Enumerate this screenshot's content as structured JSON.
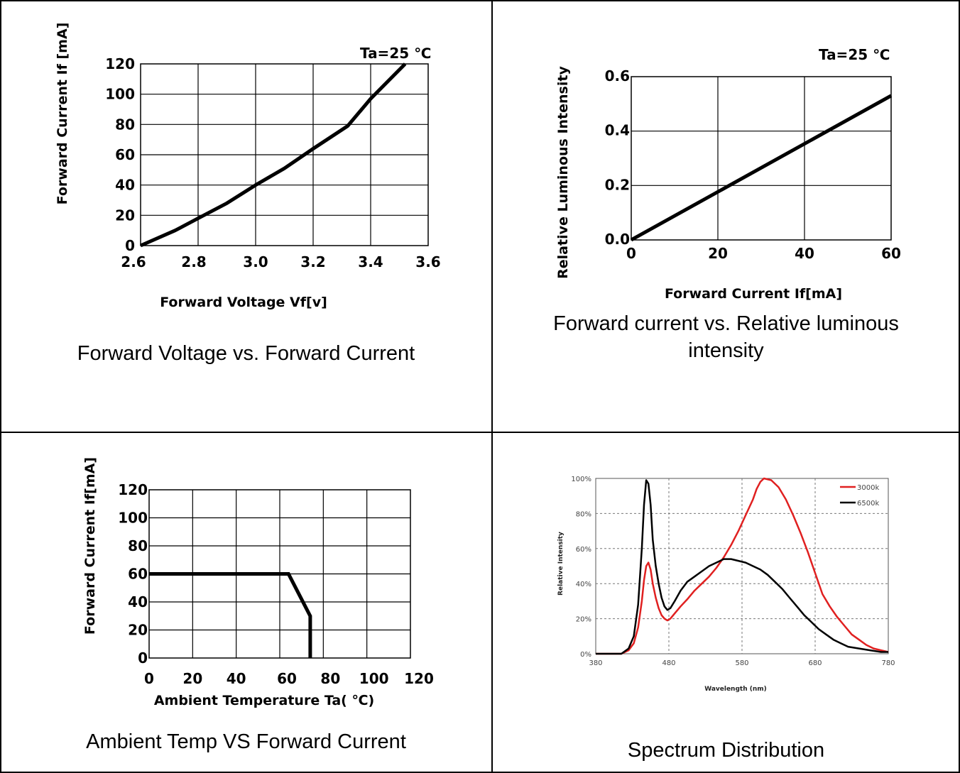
{
  "captions": {
    "c1": "Forward Voltage vs. Forward Current",
    "c2a": "Forward current vs. Relative luminous",
    "c2b": "intensity",
    "c3": "Ambient Temp VS Forward Current",
    "c4": "Spectrum Distribution"
  },
  "chart_data": [
    {
      "type": "line",
      "annotation": "Ta=25 ℃",
      "xlabel": "Forward Voltage Vf[v]",
      "ylabel": "Forward Current If [mA]",
      "xlim": [
        2.6,
        3.6
      ],
      "ylim": [
        0,
        120
      ],
      "xticks": [
        "2.6",
        "2.8",
        "3.0",
        "3.2",
        "3.4",
        "3.6"
      ],
      "yticks": [
        "0",
        "20",
        "40",
        "60",
        "80",
        "100",
        "120"
      ],
      "grid": true,
      "x": [
        2.6,
        2.72,
        2.8,
        2.9,
        3.0,
        3.1,
        3.2,
        3.32,
        3.4,
        3.52
      ],
      "y": [
        0,
        10,
        18,
        28,
        40,
        51,
        64,
        79,
        97,
        120
      ]
    },
    {
      "type": "line",
      "annotation": "Ta=25 ℃",
      "xlabel": "Forward Current If[mA]",
      "ylabel": "Relative Luminous Intensity",
      "xlim": [
        0,
        60
      ],
      "ylim": [
        0,
        0.6
      ],
      "xticks": [
        "0",
        "20",
        "40",
        "60"
      ],
      "yticks": [
        "0.0",
        "0.2",
        "0.4",
        "0.6"
      ],
      "grid": true,
      "x": [
        0,
        60
      ],
      "y": [
        0,
        0.53
      ]
    },
    {
      "type": "line",
      "xlabel": "Ambient Temperature Ta( ℃)",
      "ylabel": "Forward Current If[mA]",
      "xlim": [
        0,
        120
      ],
      "ylim": [
        0,
        120
      ],
      "xticks": [
        "0",
        "20",
        "40",
        "60",
        "80",
        "100",
        "120"
      ],
      "yticks": [
        "0",
        "20",
        "40",
        "60",
        "80",
        "100",
        "120"
      ],
      "grid": true,
      "x": [
        0,
        64,
        74,
        74
      ],
      "y": [
        60,
        60,
        30,
        0
      ]
    },
    {
      "type": "line",
      "xlabel": "Wavelength (nm)",
      "ylabel": "Relative Intensity",
      "xlim": [
        380,
        780
      ],
      "ylim": [
        0,
        100
      ],
      "xticks": [
        "380",
        "480",
        "580",
        "680",
        "780"
      ],
      "yticks": [
        "0%",
        "20%",
        "40%",
        "60%",
        "80%",
        "100%"
      ],
      "grid": true,
      "legend": "top-right",
      "series": [
        {
          "name": "3000k",
          "color": "#e02020",
          "x": [
            380,
            400,
            415,
            425,
            432,
            438,
            443,
            446,
            449,
            452,
            455,
            458,
            462,
            466,
            470,
            474,
            478,
            482,
            488,
            496,
            505,
            515,
            525,
            535,
            545,
            555,
            565,
            575,
            585,
            595,
            600,
            605,
            610,
            620,
            630,
            640,
            650,
            660,
            670,
            680,
            690,
            700,
            710,
            720,
            730,
            740,
            750,
            760,
            770,
            780
          ],
          "y": [
            0,
            0,
            0,
            2,
            6,
            15,
            30,
            42,
            50,
            52,
            48,
            40,
            32,
            26,
            22,
            20,
            19,
            20,
            23,
            27,
            31,
            36,
            40,
            44,
            49,
            55,
            62,
            70,
            79,
            88,
            94,
            98,
            100,
            99,
            95,
            88,
            79,
            69,
            58,
            46,
            34,
            27,
            21,
            16,
            11,
            8,
            5,
            3,
            2,
            1
          ]
        },
        {
          "name": "6500k",
          "color": "#000000",
          "x": [
            380,
            400,
            415,
            425,
            432,
            438,
            443,
            446,
            449,
            452,
            455,
            458,
            462,
            466,
            470,
            474,
            478,
            482,
            488,
            496,
            505,
            515,
            525,
            535,
            545,
            555,
            565,
            575,
            585,
            595,
            605,
            615,
            625,
            635,
            645,
            655,
            665,
            675,
            685,
            695,
            705,
            715,
            725,
            740,
            755,
            770,
            780
          ],
          "y": [
            0,
            0,
            0,
            3,
            10,
            28,
            60,
            85,
            99,
            97,
            85,
            65,
            50,
            40,
            32,
            27,
            25,
            26,
            30,
            36,
            41,
            44,
            47,
            50,
            52,
            54,
            54,
            53,
            52,
            50,
            48,
            45,
            41,
            37,
            32,
            27,
            22,
            18,
            14,
            11,
            8,
            6,
            4,
            3,
            2,
            1,
            1
          ]
        }
      ]
    }
  ]
}
